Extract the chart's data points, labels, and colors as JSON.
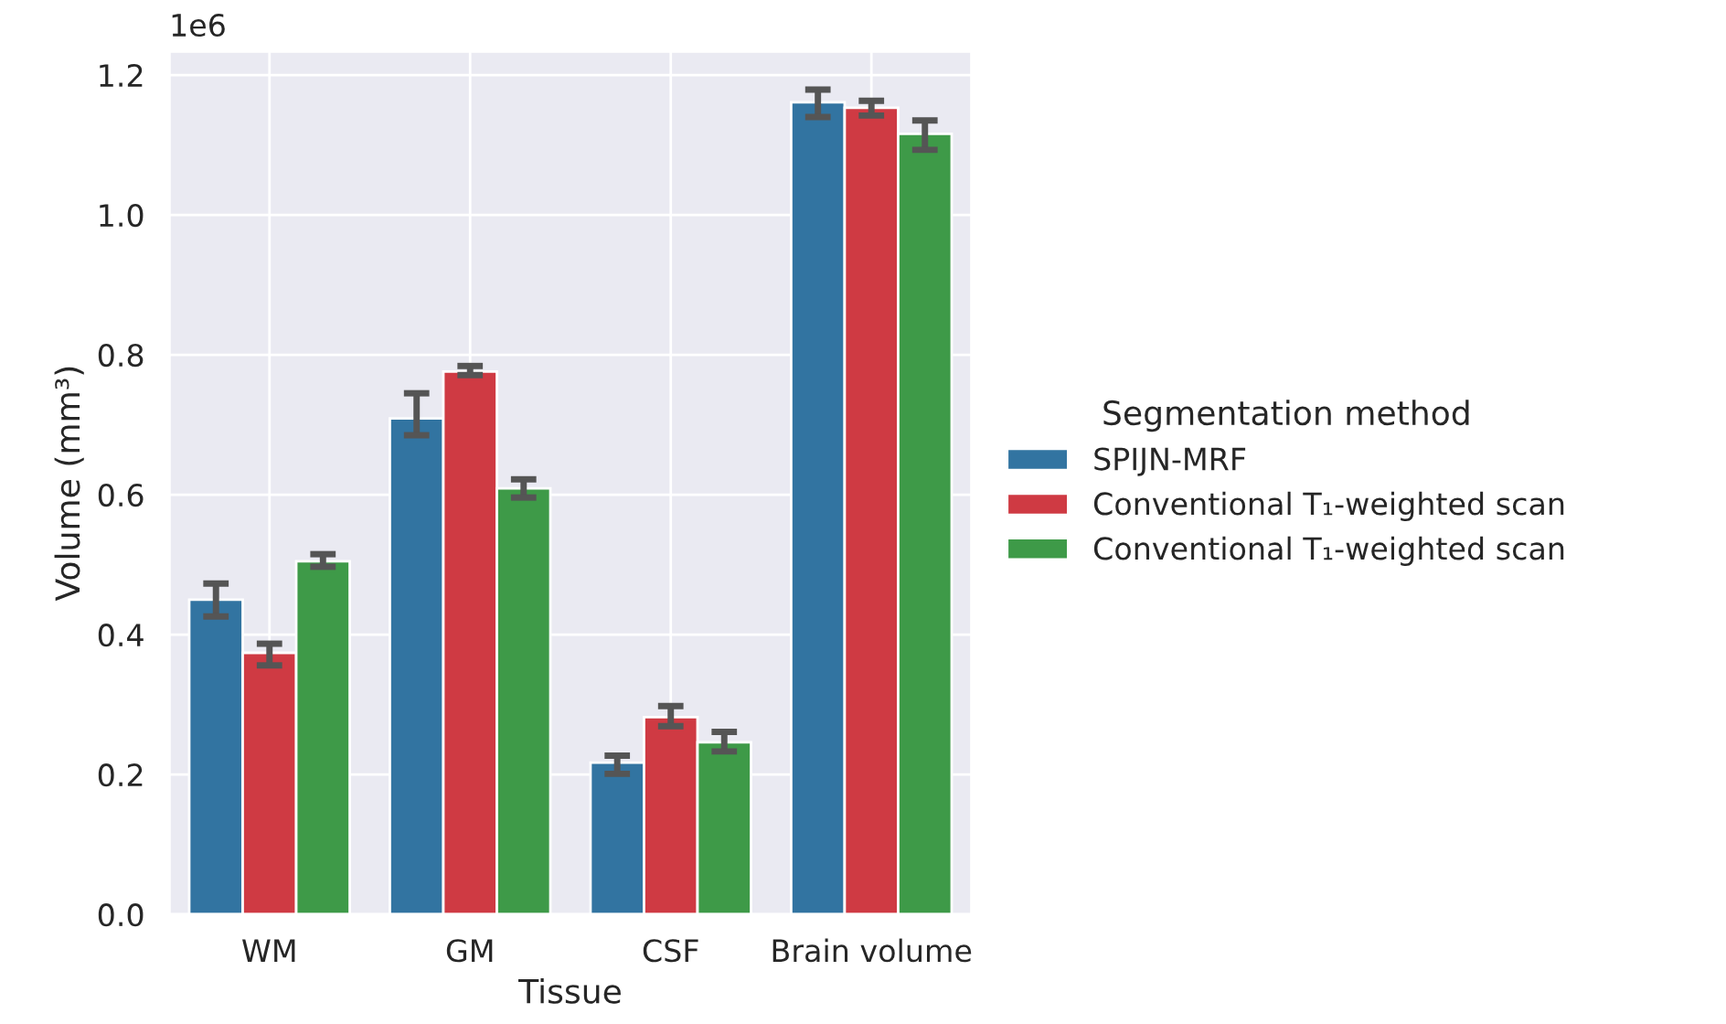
{
  "chart_data": {
    "type": "bar",
    "xlabel": "Tissue",
    "ylabel": "Volume (mm³)",
    "legend_title": "Segmentation method",
    "categories": [
      "WM",
      "GM",
      "CSF",
      "Brain volume"
    ],
    "series": [
      {
        "name": "SPIJN-MRF",
        "color": "#3274a1",
        "values": [
          0.45,
          0.709,
          0.217,
          1.161
        ],
        "errors": [
          [
            0.426,
            0.473
          ],
          [
            0.685,
            0.745
          ],
          [
            0.201,
            0.227
          ],
          [
            1.14,
            1.179
          ]
        ]
      },
      {
        "name": "Conventional T₁-weighted scan",
        "color": "#cf3a43",
        "values": [
          0.374,
          0.776,
          0.282,
          1.153
        ],
        "errors": [
          [
            0.356,
            0.387
          ],
          [
            0.771,
            0.784
          ],
          [
            0.269,
            0.298
          ],
          [
            1.142,
            1.163
          ]
        ]
      },
      {
        "name": "Conventional T₁-weighted scan",
        "color": "#3e9a48",
        "values": [
          0.505,
          0.609,
          0.246,
          1.116
        ],
        "errors": [
          [
            0.497,
            0.515
          ],
          [
            0.596,
            0.622
          ],
          [
            0.233,
            0.261
          ],
          [
            1.093,
            1.135
          ]
        ]
      }
    ],
    "ylim": [
      0,
      1.234
    ],
    "yticks": [
      {
        "value": 0,
        "label": "0.0"
      },
      0.2,
      0.4,
      0.6,
      0.8,
      {
        "value": 1,
        "label": "1.0"
      },
      1.2
    ],
    "annotations": [
      "1e6"
    ],
    "grid": true,
    "legend": "right"
  }
}
